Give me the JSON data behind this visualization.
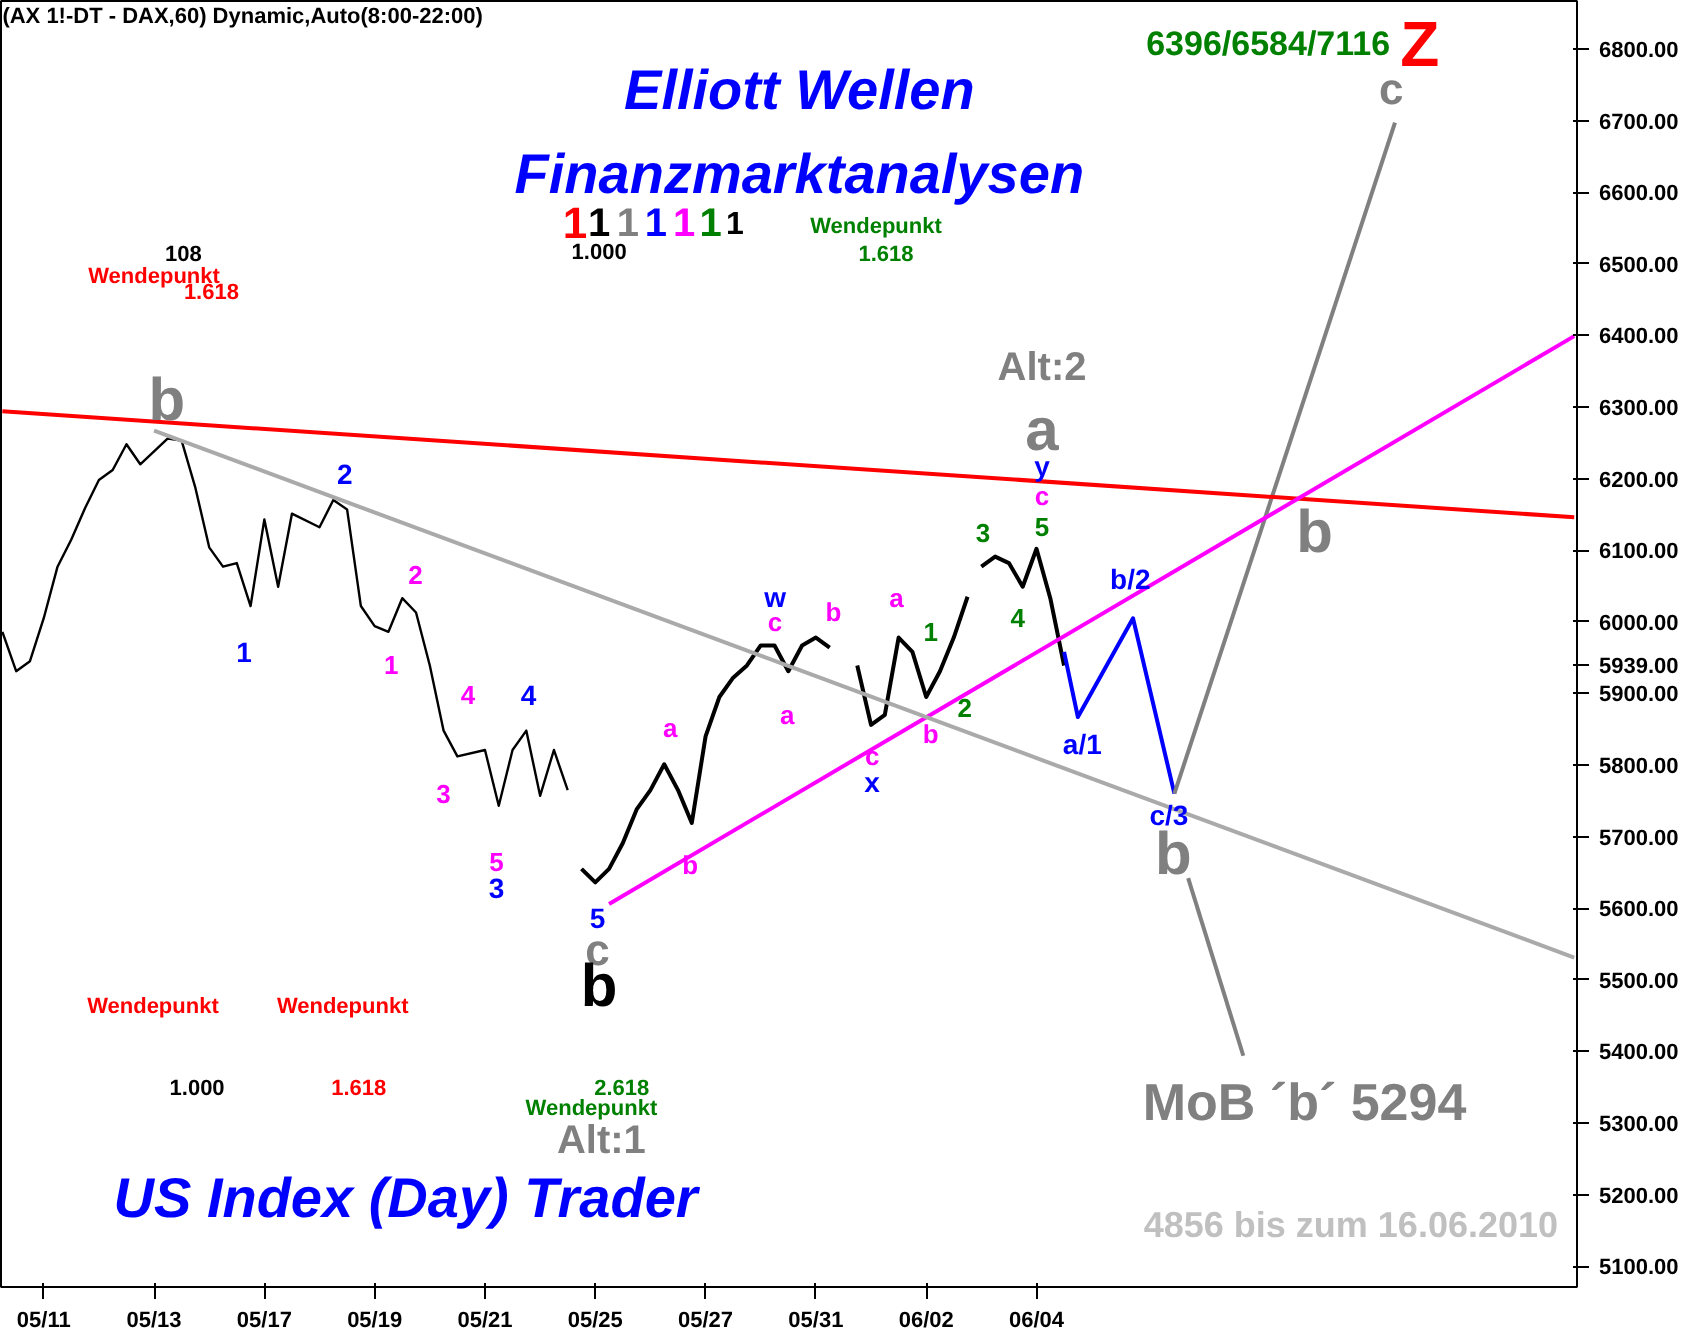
{
  "chart_data": {
    "type": "line",
    "title": "Elliott Wellen",
    "subtitle": "Finanzmarktanalysen",
    "categories": [
      null,
      null,
      null,
      "05/11",
      null,
      null,
      null,
      null,
      null,
      null,
      null,
      "05/13",
      null,
      null,
      null,
      null,
      null,
      null,
      null,
      "05/17",
      null,
      null,
      null,
      null,
      null,
      null,
      null,
      "05/19",
      null,
      null,
      null,
      null,
      null,
      null,
      null,
      "05/21",
      null,
      null,
      null,
      null,
      null,
      null,
      null,
      "05/25",
      null,
      null,
      null,
      null,
      null,
      null,
      null,
      "05/27",
      null,
      null,
      null,
      null,
      null,
      null,
      null,
      "05/31",
      null,
      null,
      null,
      null,
      null,
      null,
      null,
      "06/02",
      null,
      null,
      null,
      null,
      null,
      null,
      null,
      "06/04",
      null,
      null,
      null,
      null,
      null,
      null,
      null,
      null,
      null,
      null,
      null,
      null,
      null,
      null,
      null,
      null,
      null,
      null,
      null,
      null,
      null,
      null,
      null,
      null,
      null,
      null,
      null,
      null,
      null,
      null,
      null,
      null,
      null,
      null,
      null,
      null,
      null,
      null,
      null
    ],
    "ylim": [
      5071,
      6867
    ],
    "yticks": [
      {
        "value": 5100,
        "label": "5100.00"
      },
      {
        "value": 5200,
        "label": "5200.00"
      },
      {
        "value": 5300,
        "label": "5300.00"
      },
      {
        "value": 5400,
        "label": "5400.00"
      },
      {
        "value": 5500,
        "label": "5500.00"
      },
      {
        "value": 5600,
        "label": "5600.00"
      },
      {
        "value": 5700,
        "label": "5700.00"
      },
      {
        "value": 5800,
        "label": "5800.00"
      },
      {
        "value": 5900,
        "label": "5900.00"
      },
      {
        "value": 5939,
        "label": "5939.00"
      },
      {
        "value": 6000,
        "label": "6000.00"
      },
      {
        "value": 6100,
        "label": "6100.00"
      },
      {
        "value": 6200,
        "label": "6200.00"
      },
      {
        "value": 6300,
        "label": "6300.00"
      },
      {
        "value": 6400,
        "label": "6400.00"
      },
      {
        "value": 6500,
        "label": "6500.00"
      },
      {
        "value": 6600,
        "label": "6600.00"
      },
      {
        "value": 6700,
        "label": "6700.00"
      },
      {
        "value": 6800,
        "label": "6800.00"
      }
    ],
    "series": [
      {
        "color": "#000000",
        "values": [
          5986,
          5931,
          5945,
          6005,
          6077,
          6115,
          6159,
          6198,
          6212,
          6248,
          6220,
          null,
          6256,
          6253,
          6187,
          6104,
          6077,
          6082,
          6022,
          6143,
          6049,
          6151,
          null,
          6132,
          6170,
          6157,
          6022,
          5994,
          5986,
          6033,
          6013,
          5939,
          5848,
          5812,
          null,
          5821,
          5743,
          5821,
          5848,
          5757,
          5821,
          5765,
          null,
          null,
          null,
          null,
          null,
          null,
          null,
          null,
          null,
          null,
          null,
          null,
          null,
          null,
          null,
          null,
          null,
          null,
          null,
          null,
          null,
          null,
          null,
          null,
          null,
          null,
          null,
          null,
          null,
          null,
          null,
          null,
          null,
          null,
          null,
          null,
          null,
          null,
          null,
          null,
          null,
          null,
          null,
          null,
          null,
          null,
          null,
          null,
          null,
          null,
          null,
          null,
          null,
          null,
          null,
          null,
          null,
          null,
          null,
          null,
          null,
          null,
          null,
          null,
          null,
          null,
          null,
          null,
          null,
          null,
          null,
          null,
          null
        ]
      },
      {
        "color": "#000000",
        "values": [
          null,
          null,
          null,
          null,
          null,
          null,
          null,
          null,
          null,
          null,
          null,
          null,
          null,
          null,
          null,
          null,
          null,
          null,
          null,
          null,
          null,
          null,
          null,
          null,
          null,
          null,
          null,
          null,
          null,
          null,
          null,
          null,
          null,
          null,
          null,
          null,
          null,
          null,
          null,
          null,
          null,
          null,
          5655,
          5636,
          5655,
          5691,
          5738,
          5765,
          5801,
          5765,
          5719,
          5840,
          5895,
          5922,
          5939,
          5967,
          5967,
          5931,
          5967,
          5978,
          5964,
          null,
          null,
          null,
          null,
          null,
          null,
          null,
          null,
          null,
          null,
          null,
          null,
          null,
          null,
          null,
          null,
          null,
          null,
          null,
          null,
          null,
          null,
          null,
          null,
          null,
          null,
          null,
          null,
          null,
          null,
          null,
          null,
          null,
          null,
          null,
          null,
          null,
          null,
          null,
          null,
          null,
          null,
          null,
          null,
          null,
          null,
          null,
          null,
          null,
          null,
          null,
          null,
          null,
          null
        ]
      },
      {
        "color": "#000000",
        "values": [
          null,
          null,
          null,
          null,
          null,
          null,
          null,
          null,
          null,
          null,
          null,
          null,
          null,
          null,
          null,
          null,
          null,
          null,
          null,
          null,
          null,
          null,
          null,
          null,
          null,
          null,
          null,
          null,
          null,
          null,
          null,
          null,
          null,
          null,
          null,
          null,
          null,
          null,
          null,
          null,
          null,
          null,
          null,
          null,
          null,
          null,
          null,
          null,
          null,
          null,
          null,
          null,
          null,
          null,
          null,
          null,
          null,
          null,
          null,
          null,
          null,
          null,
          5939,
          5856,
          5870,
          5978,
          5958,
          5895,
          5931,
          5978,
          6035,
          null,
          null,
          null,
          null,
          null,
          null,
          null,
          null,
          null,
          null,
          null,
          null,
          null,
          null,
          null,
          null,
          null,
          null,
          null,
          null,
          null,
          null,
          null,
          null,
          null,
          null,
          null,
          null,
          null,
          null,
          null,
          null,
          null,
          null,
          null,
          null,
          null,
          null,
          null,
          null,
          null,
          null,
          null,
          null
        ]
      },
      {
        "color": "#000000",
        "values": [
          null,
          null,
          null,
          null,
          null,
          null,
          null,
          null,
          null,
          null,
          null,
          null,
          null,
          null,
          null,
          null,
          null,
          null,
          null,
          null,
          null,
          null,
          null,
          null,
          null,
          null,
          null,
          null,
          null,
          null,
          null,
          null,
          null,
          null,
          null,
          null,
          null,
          null,
          null,
          null,
          null,
          null,
          null,
          null,
          null,
          null,
          null,
          null,
          null,
          null,
          null,
          null,
          null,
          null,
          null,
          null,
          null,
          null,
          null,
          null,
          null,
          null,
          null,
          null,
          null,
          null,
          null,
          null,
          null,
          null,
          null,
          6077,
          6091,
          6082,
          6049,
          6102,
          6033,
          5939,
          null,
          null,
          null,
          null,
          null,
          null,
          null,
          null,
          null,
          null,
          null,
          null,
          null,
          null,
          null,
          null,
          null,
          null,
          null,
          null,
          null,
          null,
          null,
          null,
          null,
          null,
          null,
          null,
          null,
          null,
          null,
          null,
          null,
          null,
          null,
          null,
          null
        ]
      },
      {
        "color": "#0000ff",
        "values": [
          null,
          null,
          null,
          null,
          null,
          null,
          null,
          null,
          null,
          null,
          null,
          null,
          null,
          null,
          null,
          null,
          null,
          null,
          null,
          null,
          null,
          null,
          null,
          null,
          null,
          null,
          null,
          null,
          null,
          null,
          null,
          null,
          null,
          null,
          null,
          null,
          null,
          null,
          null,
          null,
          null,
          null,
          null,
          null,
          null,
          null,
          null,
          null,
          null,
          null,
          null,
          null,
          null,
          null,
          null,
          null,
          null,
          null,
          null,
          null,
          null,
          null,
          null,
          null,
          null,
          null,
          null,
          null,
          null,
          null,
          null,
          null,
          null,
          null,
          null,
          null,
          null,
          5958,
          5867,
          null,
          null,
          null,
          6005,
          null,
          null,
          5760,
          null,
          null,
          null,
          null,
          null,
          null,
          null,
          null,
          null,
          null,
          null,
          null,
          null,
          null,
          null,
          null,
          null,
          null,
          null,
          null,
          null,
          null,
          null,
          null,
          null,
          null,
          null,
          null,
          null
        ]
      },
      {
        "color": "#808080",
        "values": [
          null,
          null,
          null,
          null,
          null,
          null,
          null,
          null,
          null,
          null,
          null,
          null,
          null,
          null,
          null,
          null,
          null,
          null,
          null,
          null,
          null,
          null,
          null,
          null,
          null,
          null,
          null,
          null,
          null,
          null,
          null,
          null,
          null,
          null,
          null,
          null,
          null,
          null,
          null,
          null,
          null,
          null,
          null,
          null,
          null,
          null,
          null,
          null,
          null,
          null,
          null,
          null,
          null,
          null,
          null,
          null,
          null,
          null,
          null,
          null,
          null,
          null,
          null,
          null,
          null,
          null,
          null,
          null,
          null,
          null,
          null,
          null,
          null,
          null,
          null,
          null,
          null,
          null,
          null,
          null,
          null,
          null,
          null,
          null,
          null,
          5760,
          null,
          null,
          null,
          null,
          null,
          null,
          null,
          null,
          null,
          null,
          null,
          null,
          null,
          null,
          null,
          6697,
          null,
          null,
          null,
          null,
          null,
          null,
          null,
          null,
          null,
          null,
          null,
          null,
          null
        ]
      },
      {
        "color": "#808080",
        "values": [
          null,
          null,
          null,
          null,
          null,
          null,
          null,
          null,
          null,
          null,
          null,
          null,
          null,
          null,
          null,
          null,
          null,
          null,
          null,
          null,
          null,
          null,
          null,
          null,
          null,
          null,
          null,
          null,
          null,
          null,
          null,
          null,
          null,
          null,
          null,
          null,
          null,
          null,
          null,
          null,
          null,
          null,
          null,
          null,
          null,
          null,
          null,
          null,
          null,
          null,
          null,
          null,
          null,
          null,
          null,
          null,
          null,
          null,
          null,
          null,
          null,
          null,
          null,
          null,
          null,
          null,
          null,
          null,
          null,
          null,
          null,
          null,
          null,
          null,
          null,
          null,
          null,
          null,
          null,
          null,
          null,
          null,
          null,
          null,
          null,
          null,
          5642,
          null,
          null,
          null,
          5394,
          null,
          null,
          null,
          null,
          null,
          null,
          null,
          null,
          null,
          null,
          null,
          null,
          null,
          null,
          null,
          null,
          null,
          null,
          null,
          null,
          null,
          null,
          null,
          null
        ]
      },
      {
        "color": "#ff0000",
        "values": [
          6294,
          null,
          null,
          null,
          null,
          null,
          null,
          null,
          null,
          null,
          null,
          null,
          null,
          null,
          null,
          null,
          null,
          null,
          null,
          null,
          null,
          null,
          null,
          null,
          null,
          null,
          null,
          null,
          null,
          null,
          null,
          null,
          null,
          null,
          null,
          null,
          null,
          null,
          null,
          null,
          null,
          null,
          null,
          null,
          null,
          null,
          null,
          null,
          null,
          null,
          null,
          null,
          null,
          null,
          null,
          null,
          null,
          null,
          null,
          null,
          null,
          null,
          null,
          null,
          null,
          null,
          null,
          null,
          null,
          null,
          null,
          null,
          null,
          null,
          null,
          null,
          null,
          null,
          null,
          null,
          null,
          null,
          null,
          null,
          null,
          null,
          null,
          null,
          null,
          null,
          null,
          null,
          null,
          null,
          null,
          null,
          null,
          null,
          null,
          null,
          null,
          null,
          null,
          null,
          null,
          null,
          null,
          null,
          null,
          null,
          null,
          null,
          null,
          null,
          6146
        ]
      },
      {
        "color": "#ff00ff",
        "values": [
          null,
          null,
          null,
          null,
          null,
          null,
          null,
          null,
          null,
          null,
          null,
          null,
          null,
          null,
          null,
          null,
          null,
          null,
          null,
          null,
          null,
          null,
          null,
          null,
          null,
          null,
          null,
          null,
          null,
          null,
          null,
          null,
          null,
          null,
          null,
          null,
          null,
          null,
          null,
          null,
          null,
          null,
          null,
          null,
          5606,
          null,
          null,
          null,
          null,
          null,
          null,
          null,
          null,
          null,
          null,
          null,
          null,
          null,
          null,
          null,
          null,
          null,
          null,
          null,
          null,
          null,
          null,
          null,
          null,
          null,
          null,
          null,
          null,
          null,
          null,
          null,
          null,
          null,
          null,
          null,
          null,
          null,
          null,
          null,
          null,
          null,
          null,
          null,
          null,
          null,
          null,
          null,
          null,
          null,
          null,
          null,
          null,
          null,
          null,
          null,
          null,
          null,
          null,
          null,
          null,
          null,
          null,
          null,
          null,
          null,
          null,
          null,
          null,
          null,
          6399
        ]
      },
      {
        "color": "#aaaaaa",
        "values": [
          null,
          null,
          null,
          null,
          null,
          null,
          null,
          null,
          null,
          null,
          null,
          6267,
          null,
          null,
          null,
          null,
          null,
          null,
          null,
          null,
          null,
          null,
          null,
          null,
          null,
          null,
          null,
          null,
          null,
          null,
          null,
          null,
          null,
          null,
          null,
          null,
          null,
          null,
          null,
          null,
          null,
          null,
          null,
          null,
          null,
          null,
          null,
          null,
          null,
          null,
          null,
          null,
          null,
          null,
          null,
          null,
          null,
          null,
          null,
          null,
          null,
          null,
          null,
          null,
          null,
          null,
          null,
          null,
          null,
          null,
          null,
          null,
          null,
          null,
          null,
          null,
          null,
          null,
          null,
          null,
          null,
          null,
          null,
          null,
          null,
          null,
          null,
          null,
          null,
          null,
          null,
          null,
          null,
          null,
          null,
          null,
          null,
          null,
          null,
          null,
          null,
          null,
          null,
          null,
          null,
          null,
          null,
          null,
          null,
          null,
          null,
          null,
          null,
          null,
          5531
        ]
      }
    ],
    "annotations": [
      "(AX 1!-DT - DAX,60) Dynamic,Auto(8:00-22:00)",
      "US Index (Day) Trader",
      "b",
      "2",
      "1",
      "2",
      "1",
      "4",
      "4",
      "3",
      "5",
      "3",
      "5",
      "c",
      "b",
      "a",
      "b",
      "w",
      "c",
      "b",
      "a",
      "a",
      "c",
      "x",
      "b",
      "1",
      "2",
      "3",
      "5",
      "4",
      "c",
      "y",
      "a",
      "Alt:2",
      "a/1",
      "b/2",
      "c/3",
      "b",
      "b",
      "c",
      "Z",
      "6396/6584/7116",
      "MoB ´b´ 5294",
      "4856 bis zum 16.06.2010",
      "Alt:1",
      "108",
      "Wendepunkt",
      "1.618",
      "1",
      "1",
      "1",
      "1",
      "1",
      "1",
      "1",
      "1.000",
      "Wendepunkt",
      "1.618",
      "Wendepunkt",
      "1.000",
      "Wendepunkt",
      "1.618",
      "Wendepunkt",
      "2.618"
    ]
  }
}
